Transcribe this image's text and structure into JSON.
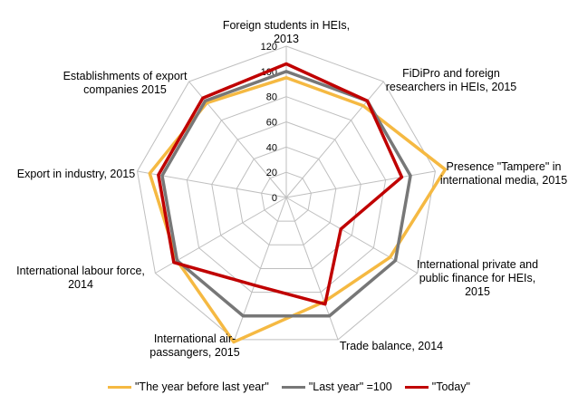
{
  "chart_data": {
    "type": "radar",
    "axes": [
      [
        "Foreign students in HEIs,",
        "2013"
      ],
      [
        "FiDiPro and foreign",
        "researchers in HEIs, 2015"
      ],
      [
        "Presence \"Tampere\" in",
        "international media, 2015"
      ],
      [
        "International private and",
        "public finance for HEIs,",
        "2015"
      ],
      [
        "Trade balance, 2014"
      ],
      [
        "International air-",
        "passangers, 2015"
      ],
      [
        "International labour force,",
        "2014"
      ],
      [
        "Export in industry, 2015"
      ],
      [
        "Establishments of export",
        "companies 2015"
      ]
    ],
    "ticks": [
      "0",
      "20",
      "40",
      "60",
      "80",
      "100",
      "120"
    ],
    "rlim": [
      0,
      120
    ],
    "series": [
      {
        "name": "\"The year before last year\"",
        "color": "#F5B942",
        "values": [
          95,
          95,
          128,
          95,
          88,
          122,
          100,
          110,
          98
        ]
      },
      {
        "name": "\"Last year\" =100",
        "color": "#777777",
        "values": [
          100,
          100,
          100,
          100,
          100,
          100,
          100,
          100,
          100
        ]
      },
      {
        "name": "\"Today\"",
        "color": "#C00000",
        "values": [
          106,
          100,
          93,
          50,
          90,
          74,
          103,
          103,
          103
        ]
      }
    ],
    "legend_position": "bottom"
  }
}
